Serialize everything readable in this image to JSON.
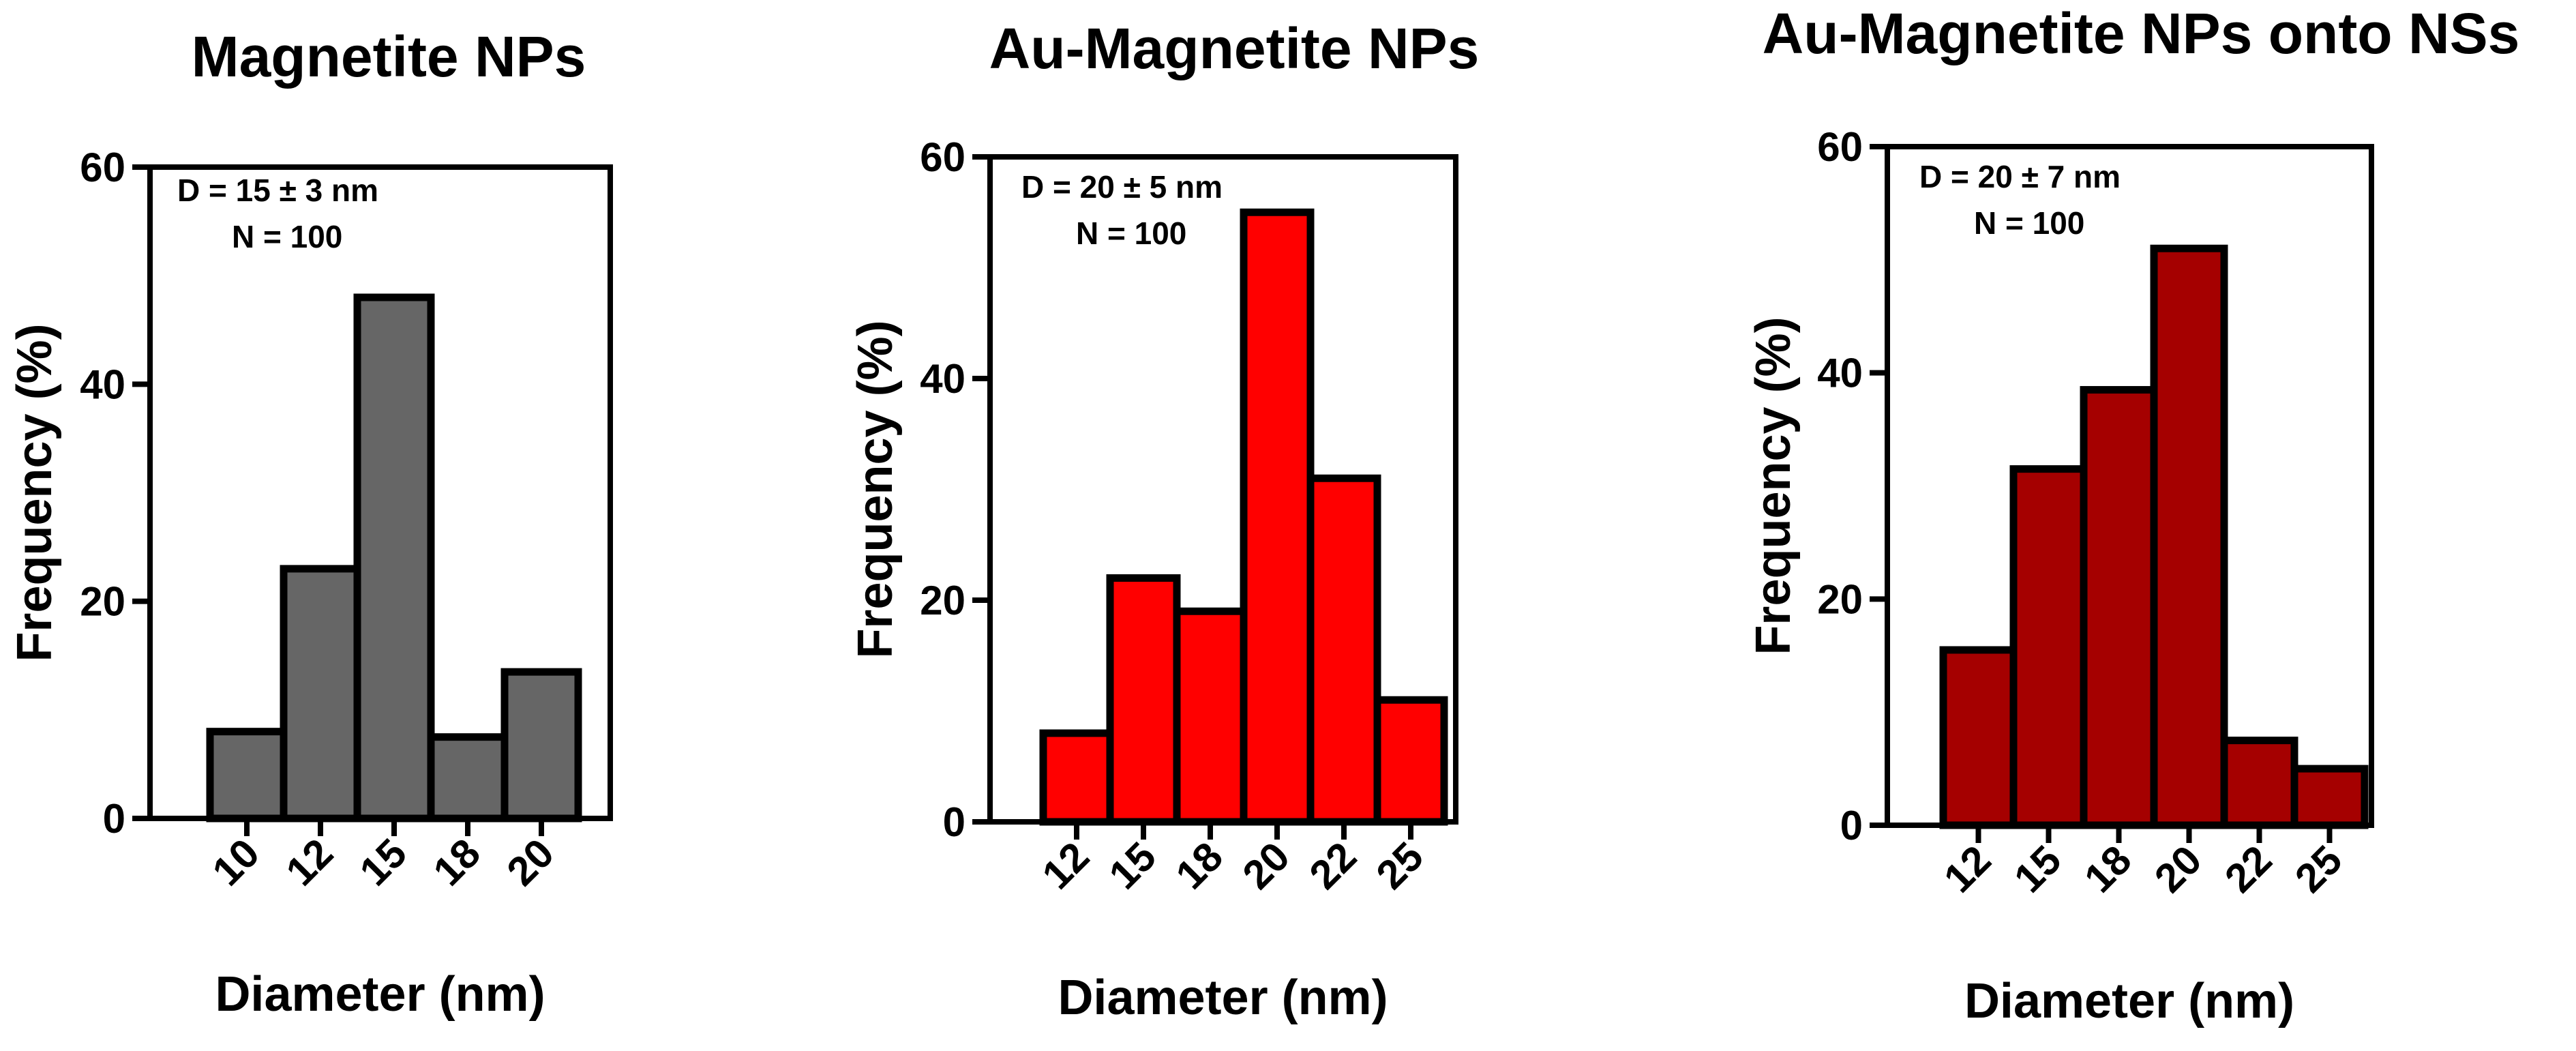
{
  "chart_data": [
    {
      "type": "bar",
      "title": "Magnetite NPs",
      "xlabel": "Diameter (nm)",
      "ylabel": "Frequency (%)",
      "categories": [
        "10",
        "12",
        "15",
        "18",
        "20"
      ],
      "values": [
        8,
        23,
        48,
        7.5,
        13.5
      ],
      "bar_color": "#666666",
      "ylim": [
        0,
        60
      ],
      "yticks": [
        "0",
        "20",
        "40",
        "60"
      ],
      "annotations": [
        "D = 15 ± 3 nm",
        "N = 100"
      ],
      "grid": false
    },
    {
      "type": "bar",
      "title": "Au-Magnetite NPs",
      "xlabel": "Diameter (nm)",
      "ylabel": "Frequency (%)",
      "categories": [
        "12",
        "15",
        "18",
        "20",
        "22",
        "25"
      ],
      "values": [
        8,
        22,
        19,
        55,
        31,
        11
      ],
      "bar_color": "#ff0000",
      "ylim": [
        0,
        60
      ],
      "yticks": [
        "0",
        "20",
        "40",
        "60"
      ],
      "annotations": [
        "D = 20 ± 5 nm",
        "N = 100"
      ],
      "grid": false
    },
    {
      "type": "bar",
      "title": "Au-Magnetite NPs onto NSs",
      "xlabel": "Diameter (nm)",
      "ylabel": "Frequency (%)",
      "categories": [
        "12",
        "15",
        "18",
        "20",
        "22",
        "25"
      ],
      "values": [
        15.5,
        31.5,
        38.5,
        51,
        7.5,
        5
      ],
      "bar_color": "#a50000",
      "ylim": [
        0,
        60
      ],
      "yticks": [
        "0",
        "20",
        "40",
        "60"
      ],
      "annotations": [
        "D = 20 ± 7 nm",
        "N = 100"
      ],
      "grid": false
    }
  ]
}
